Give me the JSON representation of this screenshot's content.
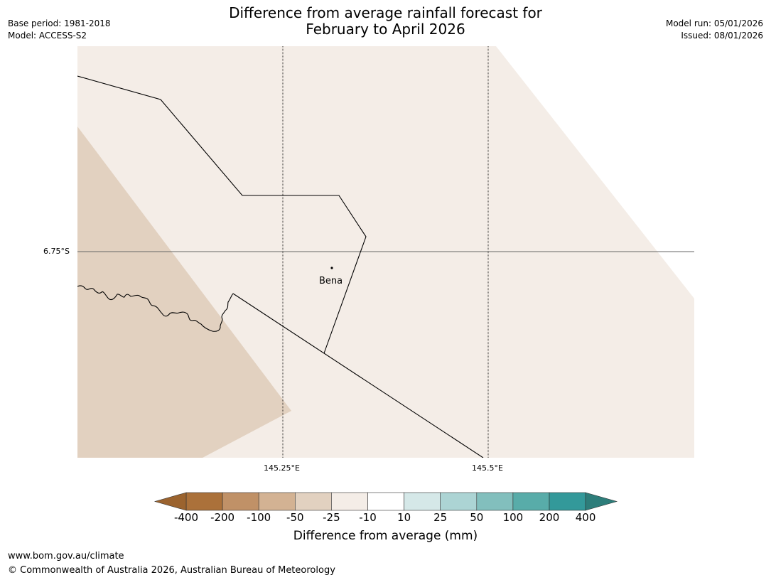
{
  "header": {
    "title_line1": "Difference from average rainfall forecast for",
    "title_line2": "February to April 2026",
    "base_period": "Base period: 1981-2018",
    "model": "Model: ACCESS-S2",
    "model_run": "Model run: 05/01/2026",
    "issued": "Issued: 08/01/2026"
  },
  "map": {
    "place_label": "Bena",
    "lat_label": "6.75°S",
    "lon_labels": [
      "145.25°E",
      "145.5°E"
    ],
    "colors": {
      "drier_band": "#e2d1c0",
      "near_normal": "#f4ede7",
      "boundary": "#000000",
      "gridline": "#000000"
    }
  },
  "colorbar": {
    "title": "Difference from average (mm)",
    "tick_labels": [
      "-400",
      "-200",
      "-100",
      "-50",
      "-25",
      "-10",
      "10",
      "25",
      "50",
      "100",
      "200",
      "400"
    ],
    "colors": [
      "#ab713a",
      "#c09167",
      "#d3b293",
      "#e2d1c0",
      "#f4ede7",
      "#ffffff",
      "#d5e8e8",
      "#acd4d4",
      "#82bfbd",
      "#58aca9",
      "#33999a"
    ],
    "extend_low_color": "#9b632e",
    "extend_high_color": "#2d7d7a"
  },
  "footer": {
    "url": "www.bom.gov.au/climate",
    "copyright": "© Commonwealth of Australia 2026, Australian Bureau of Meteorology"
  }
}
